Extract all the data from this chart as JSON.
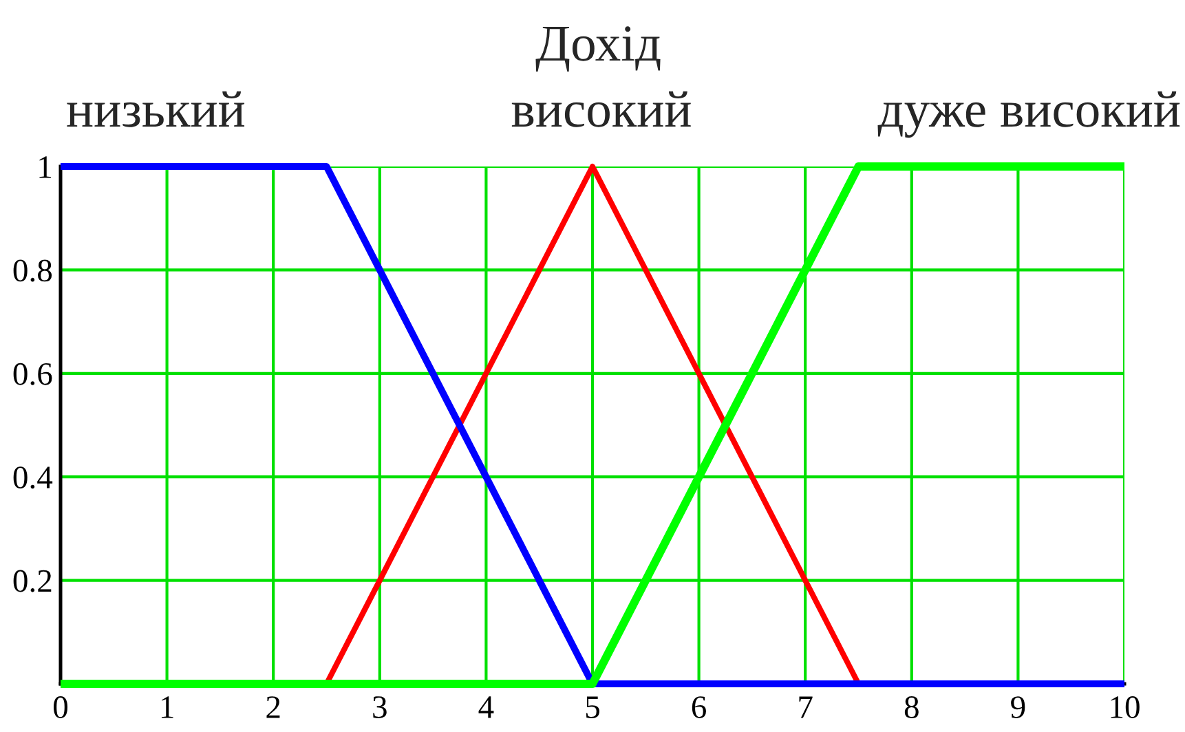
{
  "chart_data": {
    "type": "line",
    "title": "Дохід",
    "annotations": [
      "низький",
      "високий",
      "дуже високий"
    ],
    "series": [
      {
        "color": "#0000ff",
        "x": [
          0,
          2.5,
          5,
          10
        ],
        "values": [
          1,
          1,
          0,
          0
        ]
      },
      {
        "color": "#ff0000",
        "x": [
          2.5,
          5,
          7.5
        ],
        "values": [
          0,
          1,
          0
        ]
      },
      {
        "color": "#00ff00",
        "x": [
          0,
          5,
          7.5,
          10
        ],
        "values": [
          0,
          0,
          1,
          1
        ]
      }
    ],
    "xlim": [
      0,
      10
    ],
    "ylim": [
      0,
      1
    ],
    "xticks": [
      0,
      1,
      2,
      3,
      4,
      5,
      6,
      7,
      8,
      9,
      10
    ],
    "yticks": [
      {
        "value": 0,
        "label": null
      },
      0.2,
      0.4,
      0.6,
      0.8,
      1
    ],
    "grid": true,
    "legend": false,
    "marker": "none",
    "line_style": "solid"
  }
}
